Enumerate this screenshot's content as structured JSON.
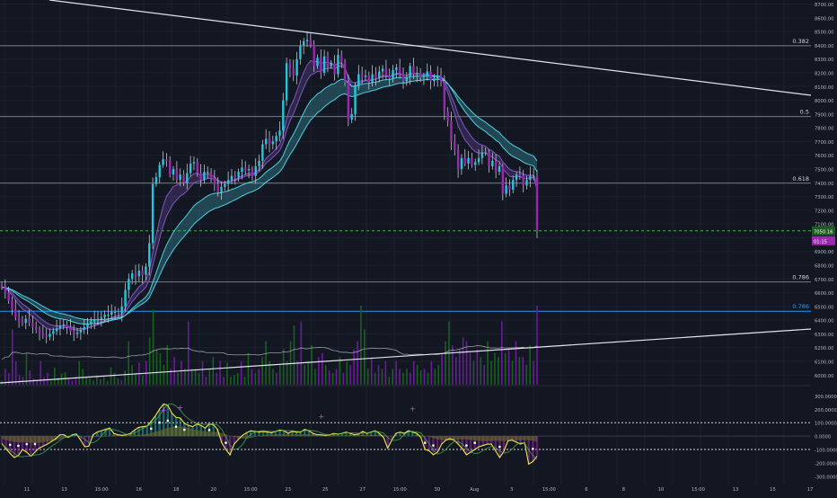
{
  "colors": {
    "background": "#131722",
    "grid": "#1c2030",
    "axis_text": "#b2b5be",
    "fib_line": "#787b86",
    "fib_label": "#d1d4dc",
    "trendline": "#e0e3eb",
    "candle_up": "#26c6da",
    "candle_down": "#9c27b0",
    "candle_wick": "#c0c3cc",
    "ema_fast": "#7e57c2",
    "ema_slow": "#4dd0e1",
    "current_price": "#1b5e20",
    "current_price_line": "#4caf50",
    "overlay_price": "#9c27b0",
    "blue_level": "#2196f3",
    "volume_up": "#1b5e20",
    "volume_down": "#6a1b9a",
    "volume_ma": "#d1d4dc",
    "osc_main": "#f3e74a",
    "osc_up": "#26a69a",
    "osc_down": "#9c27b0",
    "osc_cloud": "#6b6b2a",
    "osc_green_line": "#4caf50",
    "osc_dots": "#ffffff",
    "osc_markers": "#e040fb"
  },
  "chart_data": [
    {
      "type": "candlestick",
      "symbol": "",
      "y_axis_ticks": [
        8700,
        8600,
        8500,
        8400,
        8300,
        8200,
        8100,
        8000,
        7900,
        7800,
        7700,
        7600,
        7500,
        7400,
        7300,
        7200,
        7100,
        7000,
        6900,
        6800,
        6700,
        6600,
        6500,
        6400,
        6300,
        6200,
        6100,
        6000
      ],
      "y_axis_labels": [
        "8700.00",
        "8600.00",
        "8500.00",
        "8400.00",
        "8300.00",
        "8200.00",
        "8100.00",
        "8000.00",
        "7900.00",
        "7800.00",
        "7700.00",
        "7600.00",
        "7500.00",
        "7400.00",
        "7300.00",
        "7200.00",
        "7100.00",
        "7000.00",
        "6900.00",
        "6800.00",
        "6700.00",
        "6600.00",
        "6500.00",
        "6400.00",
        "6300.00",
        "6200.00",
        "6100.00",
        "6000.00"
      ],
      "ylim": [
        5930,
        8730
      ],
      "x_axis_labels": [
        "11",
        "13",
        "15:00",
        "16",
        "18",
        "20",
        "15:00",
        "23",
        "25",
        "27",
        "15:00",
        "30",
        "Aug",
        "3",
        "15:00",
        "6",
        "8",
        "10",
        "15:00",
        "13",
        "15",
        "17"
      ],
      "fib_levels": [
        {
          "label": "0.382",
          "price": 8397
        },
        {
          "label": "0.5",
          "price": 7882
        },
        {
          "label": "0.618",
          "price": 7397
        },
        {
          "label": "0.786",
          "price": 6678
        },
        {
          "label": "0.786",
          "price": 6465
        }
      ],
      "current_price_label": "7050.16",
      "current_price": 7050,
      "overlay_price_label": "01:15",
      "candles_close": [
        6640,
        6600,
        6540,
        6480,
        6420,
        6390,
        6380,
        6410,
        6380,
        6350,
        6330,
        6300,
        6290,
        6280,
        6300,
        6320,
        6340,
        6360,
        6370,
        6350,
        6320,
        6300,
        6310,
        6330,
        6350,
        6370,
        6390,
        6400,
        6410,
        6420,
        6440,
        6440,
        6460,
        6460,
        6450,
        6500,
        6620,
        6700,
        6740,
        6720,
        6760,
        6730,
        6790,
        6960,
        7390,
        7440,
        7530,
        7570,
        7560,
        7460,
        7500,
        7420,
        7460,
        7400,
        7470,
        7540,
        7550,
        7470,
        7420,
        7480,
        7480,
        7430,
        7390,
        7330,
        7370,
        7390,
        7420,
        7450,
        7440,
        7480,
        7510,
        7490,
        7500,
        7450,
        7520,
        7560,
        7680,
        7720,
        7680,
        7700,
        7740,
        7780,
        8000,
        8270,
        8230,
        8180,
        8300,
        8400,
        8430,
        8440,
        8400,
        8250,
        8310,
        8200,
        8320,
        8250,
        8270,
        8190,
        8330,
        8280,
        8130,
        7860,
        7900,
        8100,
        8190,
        8170,
        8180,
        8130,
        8190,
        8160,
        8210,
        8230,
        8180,
        8160,
        8220,
        8240,
        8190,
        8140,
        8170,
        8250,
        8190,
        8200,
        8170,
        8180,
        8210,
        8140,
        8160,
        8180,
        8140,
        7920,
        7850,
        7700,
        7640,
        7500,
        7580,
        7540,
        7580,
        7530,
        7550,
        7580,
        7620,
        7620,
        7520,
        7560,
        7480,
        7520,
        7320,
        7380,
        7350,
        7420,
        7460,
        7450,
        7380,
        7420,
        7450,
        7450,
        7050
      ]
    },
    {
      "type": "bar",
      "name": "",
      "y_range": [
        0,
        1
      ],
      "volume_values": [
        0.05,
        0.2,
        0.15,
        0.7,
        0.3,
        0.12,
        0.1,
        0.4,
        0.18,
        0.08,
        0.06,
        0.3,
        0.1,
        0.15,
        0.05,
        0.22,
        0.09,
        0.14,
        0.16,
        0.07,
        0.05,
        0.1,
        0.3,
        0.2,
        0.1,
        0.08,
        0.05,
        0.12,
        0.07,
        0.1,
        0.05,
        0.22,
        0.15,
        0.08,
        0.06,
        0.18,
        0.55,
        0.25,
        0.15,
        0.28,
        0.12,
        0.3,
        0.6,
        0.95,
        0.45,
        0.4,
        0.25,
        0.5,
        0.2,
        0.35,
        0.15,
        0.3,
        0.2,
        0.8,
        0.2,
        0.2,
        0.15,
        0.3,
        0.1,
        0.2,
        0.35,
        0.15,
        0.3,
        0.1,
        0.28,
        0.1,
        0.12,
        0.15,
        0.3,
        0.1,
        0.4,
        0.2,
        0.15,
        0.2,
        0.35,
        0.55,
        0.3,
        0.2,
        0.15,
        0.25,
        0.45,
        0.3,
        0.55,
        0.75,
        0.3,
        0.8,
        0.25,
        0.3,
        0.5,
        0.2,
        0.35,
        0.4,
        0.25,
        0.18,
        0.15,
        0.2,
        0.35,
        0.15,
        0.3,
        0.25,
        0.45,
        0.55,
        1.0,
        0.7,
        0.2,
        0.35,
        0.15,
        0.25,
        0.2,
        0.3,
        0.1,
        0.2,
        0.3,
        0.2,
        0.15,
        0.2,
        0.15,
        0.3,
        0.25,
        0.18,
        0.2,
        0.15,
        0.3,
        0.2,
        0.25,
        0.4,
        0.55,
        0.8,
        0.5,
        0.35,
        0.45,
        0.6,
        0.55,
        0.4,
        0.3,
        0.45,
        0.35,
        0.25,
        0.55,
        0.3,
        0.4,
        0.35,
        0.8,
        0.4,
        0.45,
        0.3,
        0.55,
        0.35,
        0.35,
        0.25,
        0.5,
        0.3,
        1.0
      ]
    },
    {
      "type": "line",
      "name": "",
      "y_axis_labels": [
        "300.0000",
        "200.0000",
        "100.0000",
        "0.0000",
        "-100.0000",
        "-200.0000",
        "-300.0000"
      ],
      "y_axis_ticks": [
        300,
        200,
        100,
        0,
        -100,
        -200,
        -300
      ],
      "ylim": [
        -355,
        370
      ],
      "reference_lines": [
        100,
        -100
      ],
      "osc_values": [
        -55,
        -95,
        -130,
        -160,
        -145,
        -100,
        -120,
        -150,
        -120,
        -90,
        -75,
        -60,
        -40,
        -20,
        10,
        10,
        -10,
        10,
        15,
        -30,
        -80,
        -75,
        10,
        30,
        40,
        50,
        60,
        20,
        10,
        5,
        10,
        20,
        45,
        65,
        70,
        75,
        110,
        150,
        200,
        240,
        230,
        170,
        140,
        135,
        95,
        80,
        70,
        90,
        80,
        60,
        90,
        85,
        50,
        -50,
        -100,
        -140,
        -60,
        -25,
        5,
        25,
        40,
        35,
        30,
        35,
        30,
        25,
        35,
        45,
        40,
        20,
        35,
        30,
        30,
        50,
        40,
        20,
        10,
        10,
        5,
        10,
        20,
        15,
        20,
        30,
        20,
        10,
        15,
        35,
        20,
        30,
        40,
        20,
        -10,
        -90,
        -30,
        20,
        30,
        20,
        40,
        30,
        20,
        -10,
        -100,
        -110,
        -140,
        -120,
        -60,
        -30,
        -20,
        -30,
        -60,
        -95,
        -140,
        -120,
        -100,
        -80,
        -70,
        -60,
        -60,
        -110,
        -160,
        -115,
        -35,
        -30,
        -45,
        -60,
        -50,
        -210,
        -190,
        -150
      ]
    }
  ]
}
